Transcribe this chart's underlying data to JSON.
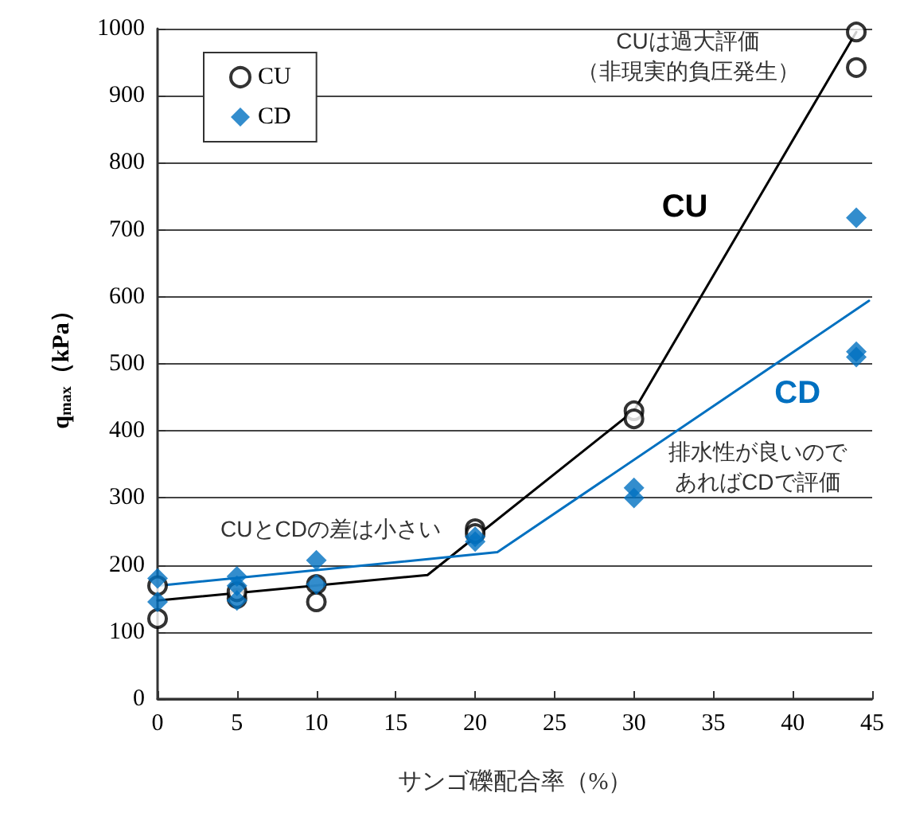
{
  "chart_data": {
    "type": "scatter",
    "xlabel": "サンゴ礫配合率（%）",
    "ylabel": "q$_{max}$（kPa）",
    "xlim": [
      0,
      45
    ],
    "xticks": [
      0,
      5,
      10,
      15,
      20,
      25,
      30,
      35,
      40,
      45
    ],
    "ylim": [
      0,
      1000
    ],
    "yticks": [
      0,
      100,
      200,
      300,
      400,
      500,
      600,
      700,
      800,
      900,
      1000
    ],
    "grid": "y",
    "legend": "top left",
    "line_style": "solid",
    "series": [
      {
        "name": "CU",
        "marker": "circle",
        "color": "#000000",
        "x": [
          0,
          0,
          5,
          5,
          10,
          10,
          20,
          20,
          30,
          30,
          44,
          44
        ],
        "values": [
          169,
          120,
          150,
          160,
          171,
          145,
          254,
          247,
          430,
          418,
          995,
          942
        ]
      },
      {
        "name": "CD",
        "marker": "diamond",
        "color": "#0070c0",
        "x": [
          0,
          0,
          5,
          5,
          5,
          10,
          10,
          20,
          20,
          30,
          30,
          44,
          44,
          44
        ],
        "values": [
          180,
          145,
          183,
          169,
          147,
          207,
          171,
          242,
          235,
          315,
          300,
          718,
          518,
          510
        ]
      },
      {
        "type": "line",
        "marker": "none",
        "color": "#000000",
        "x": [
          0,
          17,
          30,
          44
        ],
        "values": [
          147,
          185,
          430,
          995
        ]
      },
      {
        "type": "line",
        "marker": "none",
        "color": "#0070c0",
        "x": [
          0,
          21.4,
          44.8
        ],
        "values": [
          169,
          219,
          594
        ]
      }
    ],
    "annotations": [
      "CUは過大評価（非現実的負圧発生）",
      "CU",
      "CD",
      "排水性が良いのであればCDで評価",
      "CUとCDの差は小さい"
    ]
  }
}
